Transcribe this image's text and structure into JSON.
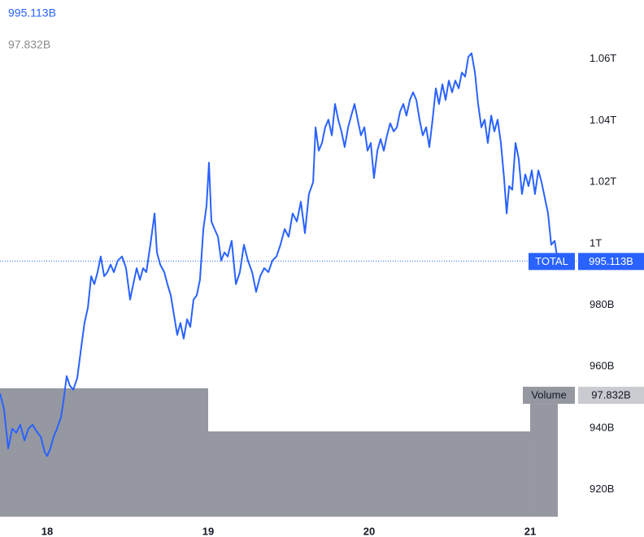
{
  "chart_data": {
    "type": "line",
    "legend": {
      "price": "995.113B",
      "volume": "97.832B"
    },
    "x": [
      17.707,
      17.732,
      17.758,
      17.783,
      17.808,
      17.833,
      17.859,
      17.884,
      17.909,
      17.934,
      17.96,
      17.985,
      18.0,
      18.02,
      18.04,
      18.061,
      18.086,
      18.101,
      18.121,
      18.141,
      18.162,
      18.187,
      18.212,
      18.232,
      18.253,
      18.273,
      18.293,
      18.313,
      18.333,
      18.354,
      18.374,
      18.394,
      18.414,
      18.439,
      18.465,
      18.49,
      18.515,
      18.535,
      18.556,
      18.576,
      18.596,
      18.616,
      18.641,
      18.667,
      18.682,
      18.702,
      18.727,
      18.747,
      18.768,
      18.788,
      18.808,
      18.828,
      18.848,
      18.869,
      18.889,
      18.909,
      18.929,
      18.949,
      18.97,
      18.99,
      19.005,
      19.02,
      19.04,
      19.061,
      19.081,
      19.101,
      19.121,
      19.146,
      19.172,
      19.197,
      19.222,
      19.247,
      19.273,
      19.298,
      19.323,
      19.348,
      19.374,
      19.399,
      19.424,
      19.449,
      19.475,
      19.5,
      19.525,
      19.551,
      19.576,
      19.601,
      19.626,
      19.652,
      19.667,
      19.687,
      19.707,
      19.727,
      19.747,
      19.768,
      19.788,
      19.808,
      19.828,
      19.848,
      19.869,
      19.889,
      19.909,
      19.929,
      19.949,
      19.97,
      19.99,
      20.01,
      20.03,
      20.051,
      20.071,
      20.091,
      20.111,
      20.131,
      20.152,
      20.172,
      20.192,
      20.212,
      20.232,
      20.253,
      20.273,
      20.293,
      20.313,
      20.333,
      20.354,
      20.374,
      20.394,
      20.414,
      20.434,
      20.455,
      20.475,
      20.495,
      20.515,
      20.535,
      20.556,
      20.576,
      20.596,
      20.616,
      20.636,
      20.657,
      20.677,
      20.697,
      20.717,
      20.737,
      20.758,
      20.778,
      20.798,
      20.818,
      20.838,
      20.854,
      20.869,
      20.889,
      20.909,
      20.929,
      20.949,
      20.97,
      20.99,
      21.01,
      21.03,
      21.051,
      21.071,
      21.091,
      21.111,
      21.131,
      21.152,
      21.172
    ],
    "series": [
      {
        "name": "TOTAL",
        "color": "#2962ff",
        "last_label": "995.113B",
        "values": [
          952.1,
          947,
          934.2,
          940.6,
          939.3,
          941.9,
          936.8,
          940.6,
          941.9,
          939.8,
          938,
          933,
          931.7,
          934.2,
          938,
          940.6,
          944.4,
          949.5,
          957.7,
          954.6,
          953.3,
          957.1,
          967.3,
          975,
          980,
          990.2,
          987.6,
          991.5,
          996.6,
          990.2,
          991.5,
          994,
          991.5,
          995.3,
          996.6,
          992.8,
          982.6,
          987.6,
          992.8,
          989,
          992.8,
          991.5,
          1000.4,
          1010.6,
          997.9,
          994,
          991.5,
          987.6,
          983.9,
          977.5,
          971.1,
          975,
          969.9,
          976.2,
          973.7,
          982.6,
          983.9,
          989,
          1005.5,
          1013.1,
          1027.1,
          1008,
          1005.5,
          1003,
          995.3,
          997.9,
          996.6,
          1001.7,
          987.6,
          991.5,
          1000.4,
          995.3,
          991.5,
          985.1,
          990.2,
          992.8,
          991.5,
          995.3,
          996.6,
          1000.4,
          1005.5,
          1003,
          1010.6,
          1008,
          1014.4,
          1004.2,
          1016.9,
          1020.8,
          1038.6,
          1031,
          1033.5,
          1038.6,
          1041.1,
          1036,
          1046.2,
          1041.1,
          1037.3,
          1032.2,
          1038.6,
          1042.4,
          1046.2,
          1041.1,
          1036,
          1038.6,
          1031,
          1033.5,
          1022.1,
          1031,
          1034.8,
          1031,
          1036,
          1039.9,
          1037.3,
          1038.6,
          1043.7,
          1046.2,
          1042.4,
          1047.5,
          1050,
          1047.5,
          1041.1,
          1036,
          1038.6,
          1032.2,
          1041.1,
          1051.3,
          1046.2,
          1052.6,
          1047.5,
          1053.8,
          1050,
          1053.8,
          1051.3,
          1056.4,
          1055.1,
          1061.5,
          1062.7,
          1056.4,
          1046.2,
          1038.6,
          1041.1,
          1033.5,
          1042.4,
          1037.3,
          1041.1,
          1033.5,
          1022.1,
          1010.6,
          1019.5,
          1018.3,
          1033.5,
          1028.4,
          1016.9,
          1023.3,
          1019.5,
          1024.6,
          1016.9,
          1024.6,
          1020.8,
          1015.7,
          1010.6,
          1000.4,
          1001.7,
          995.113
        ]
      }
    ],
    "volume": {
      "name": "Volume",
      "color": "#9598a1",
      "bins": [
        17,
        19,
        21,
        23
      ],
      "values": [
        111.3,
        73.9,
        97.832
      ],
      "last_label": "97.832B"
    },
    "xlim": [
      17.707,
      21.293
    ],
    "xticks": [
      18,
      19,
      20,
      21
    ],
    "ylim": [
      912,
      1080
    ],
    "yticks": [
      {
        "value": 920,
        "label": "920B"
      },
      {
        "value": 940,
        "label": "940B"
      },
      {
        "value": 960,
        "label": "960B"
      },
      {
        "value": 980,
        "label": "980B"
      },
      {
        "value": 1000,
        "label": "1T"
      },
      {
        "value": 1020,
        "label": "1.02T"
      },
      {
        "value": 1040,
        "label": "1.04T"
      },
      {
        "value": 1060,
        "label": "1.06T"
      }
    ],
    "y2lim": [
      0,
      300
    ]
  }
}
